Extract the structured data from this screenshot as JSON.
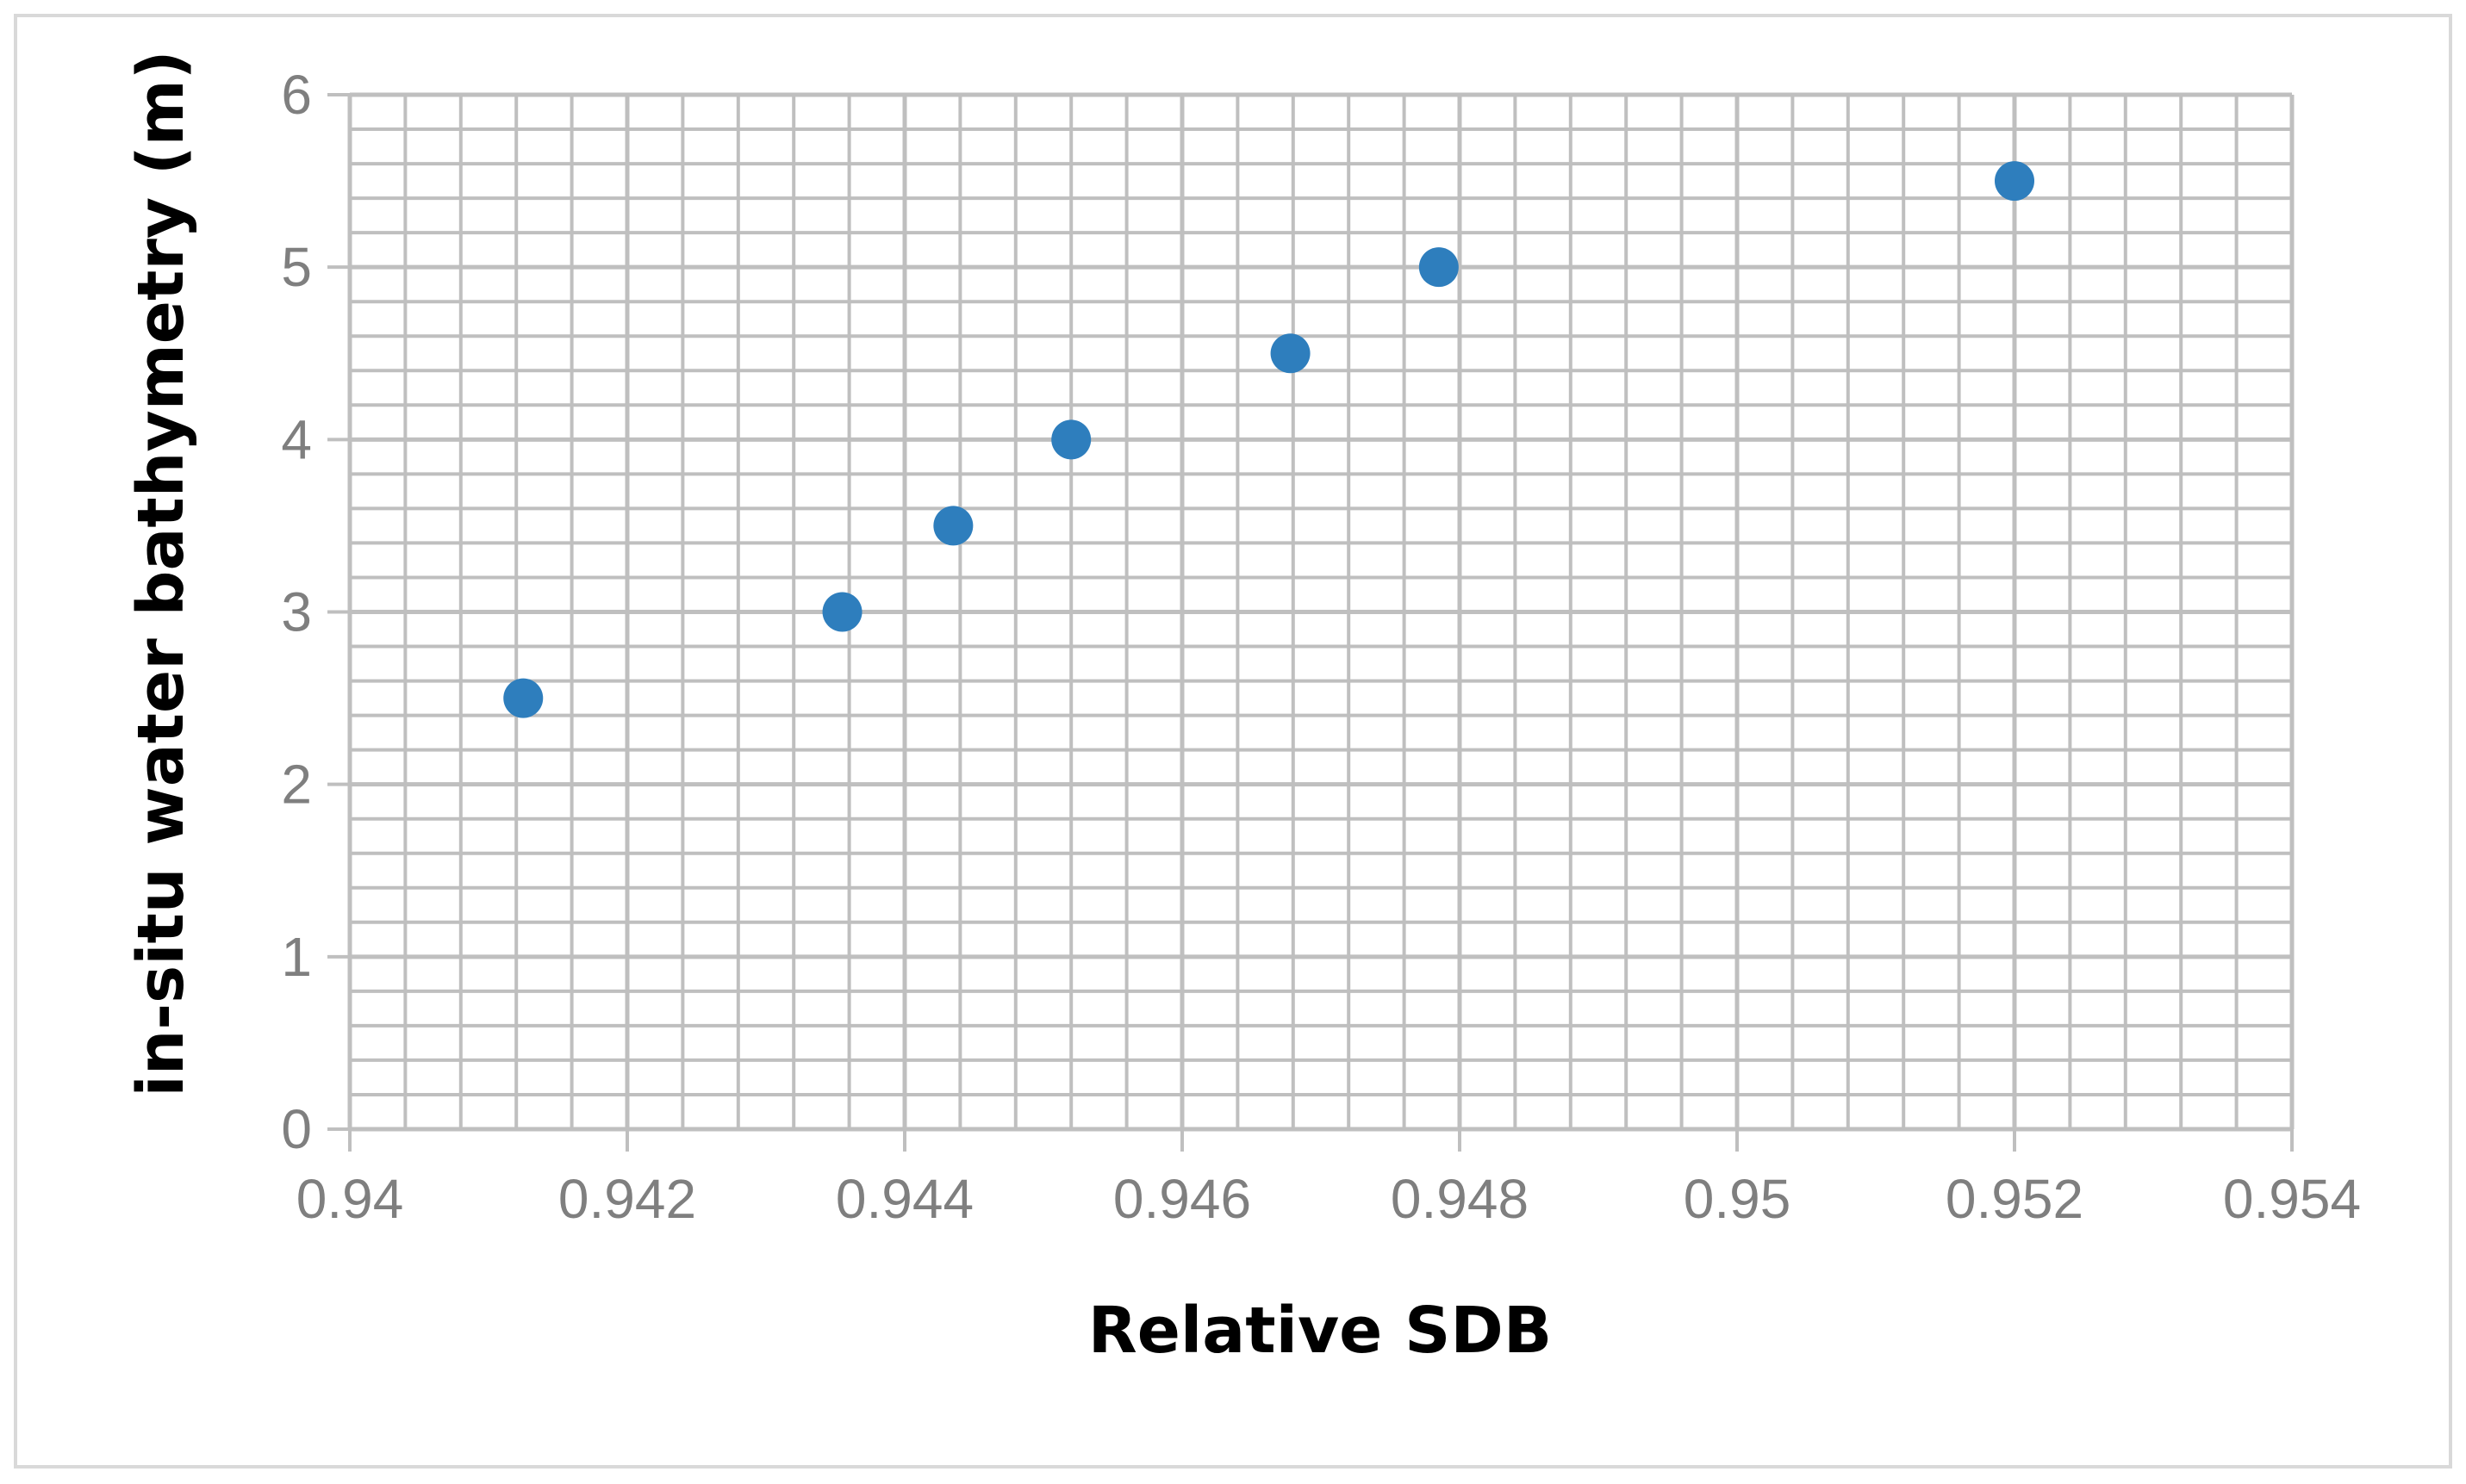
{
  "chart_data": {
    "type": "scatter",
    "title": "",
    "xlabel": "Relative SDB",
    "ylabel": "in-situ water bathymetry (m)",
    "xlim": [
      0.94,
      0.954
    ],
    "ylim": [
      0,
      6
    ],
    "x_ticks": [
      "0.94",
      "0.942",
      "0.944",
      "0.946",
      "0.948",
      "0.95",
      "0.952",
      "0.954"
    ],
    "y_ticks": [
      "0",
      "1",
      "2",
      "3",
      "4",
      "5",
      "6"
    ],
    "grid": true,
    "legend": "none",
    "series": [
      {
        "color": "#2e7ebd",
        "points": [
          {
            "x": 0.94125,
            "y": 2.5
          },
          {
            "x": 0.94355,
            "y": 3.0
          },
          {
            "x": 0.94435,
            "y": 3.5
          },
          {
            "x": 0.9452,
            "y": 4.0
          },
          {
            "x": 0.94678,
            "y": 4.5
          },
          {
            "x": 0.94785,
            "y": 5.0
          },
          {
            "x": 0.952,
            "y": 5.5
          }
        ]
      }
    ],
    "colors": {
      "grid": "#bfbfbf",
      "tick_text": "#7f7f7f",
      "border": "#d9d9d9"
    }
  }
}
